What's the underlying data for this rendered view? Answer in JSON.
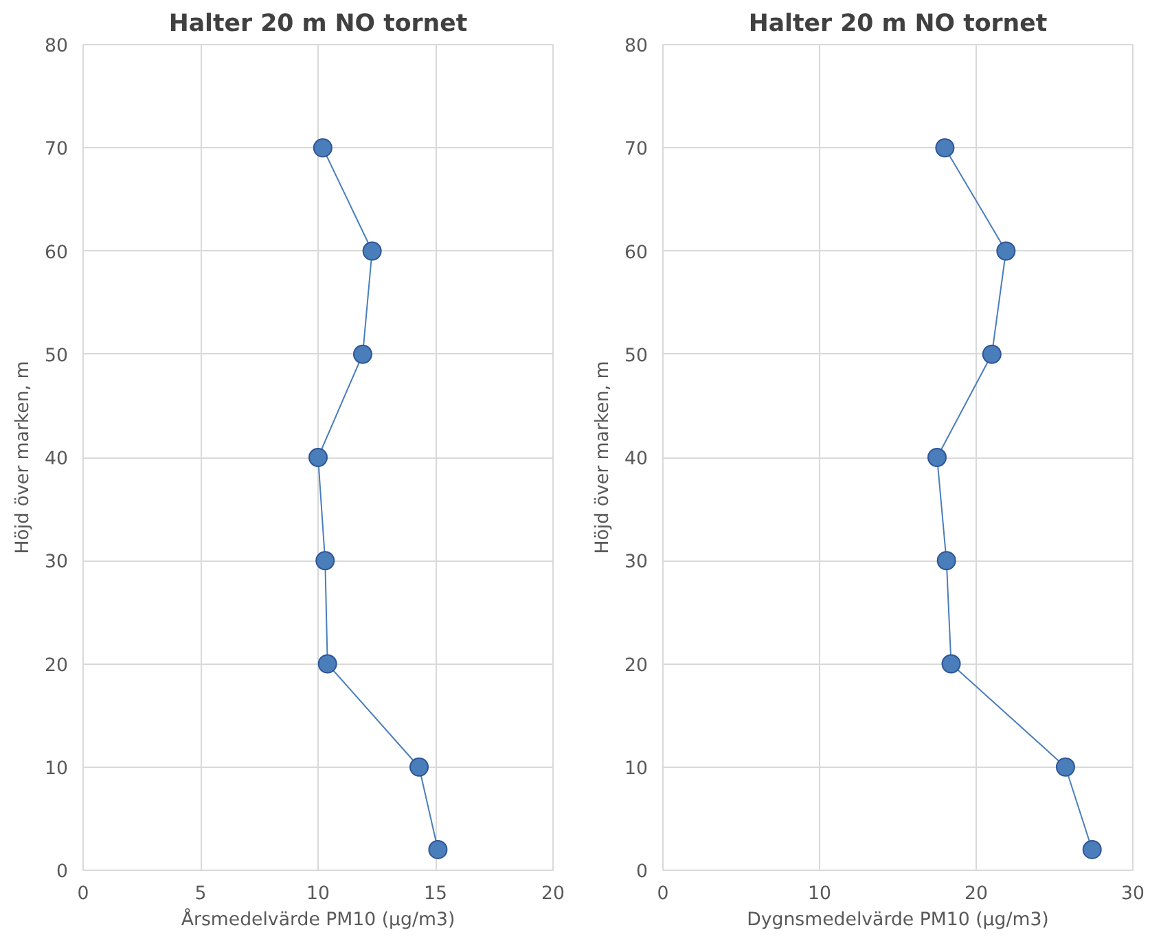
{
  "chart_data": [
    {
      "type": "line",
      "title": "Halter 20 m NO tornet",
      "xlabel": "Årsmedelvärde PM10 (µg/m3)",
      "ylabel": "Höjd över marken, m",
      "xlim": [
        0,
        20
      ],
      "xticks": [
        0,
        5,
        10,
        15,
        20
      ],
      "ylim": [
        0,
        80
      ],
      "yticks": [
        0,
        10,
        20,
        30,
        40,
        50,
        60,
        70,
        80
      ],
      "grid": true,
      "marker": "circle",
      "line_style": "solid",
      "series": [
        {
          "color": "#4a7ebb",
          "x": [
            10.2,
            12.3,
            11.9,
            10.0,
            10.3,
            10.4,
            14.3,
            15.1
          ],
          "values": [
            70,
            60,
            50,
            40,
            30,
            20,
            10,
            2
          ]
        }
      ]
    },
    {
      "type": "line",
      "title": "Halter 20 m NO tornet",
      "xlabel": "Dygnsmedelvärde PM10 (µg/m3)",
      "ylabel": "Höjd över marken, m",
      "xlim": [
        0,
        30
      ],
      "xticks": [
        0,
        10,
        20,
        30
      ],
      "ylim": [
        0,
        80
      ],
      "yticks": [
        0,
        10,
        20,
        30,
        40,
        50,
        60,
        70,
        80
      ],
      "grid": true,
      "marker": "circle",
      "line_style": "solid",
      "series": [
        {
          "color": "#4a7ebb",
          "x": [
            18.0,
            21.9,
            21.0,
            17.5,
            18.1,
            18.4,
            25.7,
            27.4
          ],
          "values": [
            70,
            60,
            50,
            40,
            30,
            20,
            10,
            2
          ]
        }
      ]
    }
  ]
}
